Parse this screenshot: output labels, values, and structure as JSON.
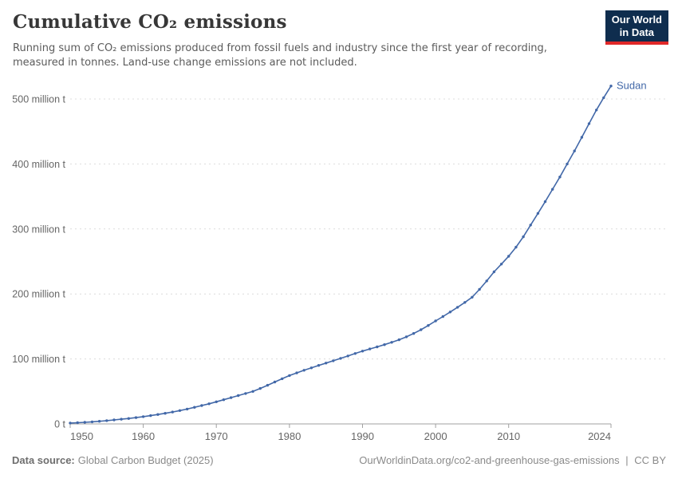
{
  "header": {
    "title": "Cumulative CO₂ emissions",
    "subtitle_line1": "Running sum of CO₂ emissions produced from fossil fuels and industry since the first year of recording,",
    "subtitle_line2": "measured in tonnes. Land-use change emissions are not included.",
    "logo": {
      "line1": "Our World",
      "line2": "in Data",
      "bg_color": "#0f2d4e",
      "accent_color": "#e02828"
    }
  },
  "footer": {
    "source_label": "Data source:",
    "source_value": "Global Carbon Budget (2025)",
    "link": "OurWorldinData.org/co2-and-greenhouse-gas-emissions",
    "separator": "|",
    "license": "CC BY"
  },
  "chart_data": {
    "type": "line",
    "title": "Cumulative CO₂ emissions",
    "ylabel": "",
    "xlabel": "",
    "unit": "million t",
    "series_label": "Sudan",
    "xlim": [
      1950,
      2024
    ],
    "ylim": [
      0,
      520
    ],
    "grid": true,
    "legend_position": "end-of-line",
    "x_ticks": [
      1950,
      1960,
      1970,
      1980,
      1990,
      2000,
      2010,
      2024
    ],
    "y_ticks": [
      0,
      100,
      200,
      300,
      400,
      500
    ],
    "y_tick_labels": [
      "0 t",
      "100 million t",
      "200 million t",
      "300 million t",
      "400 million t",
      "500 million t"
    ],
    "colors": {
      "line": "#4268a8",
      "grid": "#dcdcdc",
      "axis": "#a0a0a0",
      "tick_label": "#666666"
    },
    "x": [
      1950,
      1951,
      1952,
      1953,
      1954,
      1955,
      1956,
      1957,
      1958,
      1959,
      1960,
      1961,
      1962,
      1963,
      1964,
      1965,
      1966,
      1967,
      1968,
      1969,
      1970,
      1971,
      1972,
      1973,
      1974,
      1975,
      1976,
      1977,
      1978,
      1979,
      1980,
      1981,
      1982,
      1983,
      1984,
      1985,
      1986,
      1987,
      1988,
      1989,
      1990,
      1991,
      1992,
      1993,
      1994,
      1995,
      1996,
      1997,
      1998,
      1999,
      2000,
      2001,
      2002,
      2003,
      2004,
      2005,
      2006,
      2007,
      2008,
      2009,
      2010,
      2011,
      2012,
      2013,
      2014,
      2015,
      2016,
      2017,
      2018,
      2019,
      2020,
      2021,
      2022,
      2023,
      2024
    ],
    "values": [
      1.4,
      1.9,
      2.5,
      3.2,
      4,
      5,
      6.1,
      7.2,
      8.4,
      9.7,
      11.2,
      12.8,
      14.5,
      16.3,
      18.3,
      20.5,
      22.9,
      25.5,
      28.2,
      31,
      34,
      37.2,
      40.4,
      43.6,
      46.8,
      50,
      54.5,
      59.5,
      64.5,
      69.5,
      74.5,
      78.5,
      82.5,
      86.3,
      90,
      93.6,
      97.2,
      100.9,
      104.6,
      108.3,
      112,
      115.3,
      118.6,
      122,
      125.6,
      129.5,
      134,
      139.2,
      145,
      151.5,
      158.5,
      165.2,
      172.2,
      179.5,
      187,
      195,
      207,
      220,
      234,
      246,
      258,
      272,
      288,
      306,
      324,
      342,
      361,
      380,
      400,
      420,
      441,
      462,
      483,
      502,
      520
    ]
  }
}
